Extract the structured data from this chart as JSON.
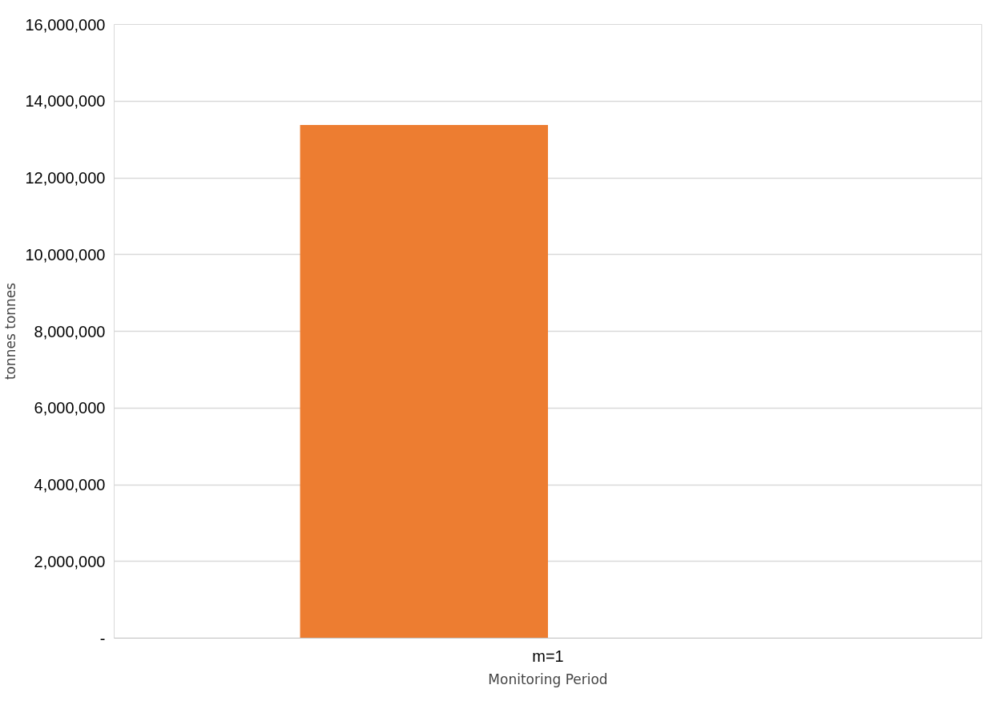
{
  "chart_data": {
    "type": "bar",
    "categories": [
      "m=1"
    ],
    "series": [
      {
        "color": "#ed7d31",
        "values": [
          13380000
        ]
      },
      {
        "values": [
          null
        ]
      }
    ],
    "xlabel": "Monitoring Period",
    "ylabel": "tonnes tonnes",
    "ylim": [
      0,
      16000000
    ],
    "yticks": [
      {
        "value": 0,
        "label": "-"
      },
      {
        "value": 2000000,
        "label": "2,000,000"
      },
      {
        "value": 4000000,
        "label": "4,000,000"
      },
      {
        "value": 6000000,
        "label": "6,000,000"
      },
      {
        "value": 8000000,
        "label": "8,000,000"
      },
      {
        "value": 10000000,
        "label": "10,000,000"
      },
      {
        "value": 12000000,
        "label": "12,000,000"
      },
      {
        "value": 14000000,
        "label": "14,000,000"
      },
      {
        "value": 16000000,
        "label": "16,000,000"
      }
    ],
    "grid": "y"
  }
}
